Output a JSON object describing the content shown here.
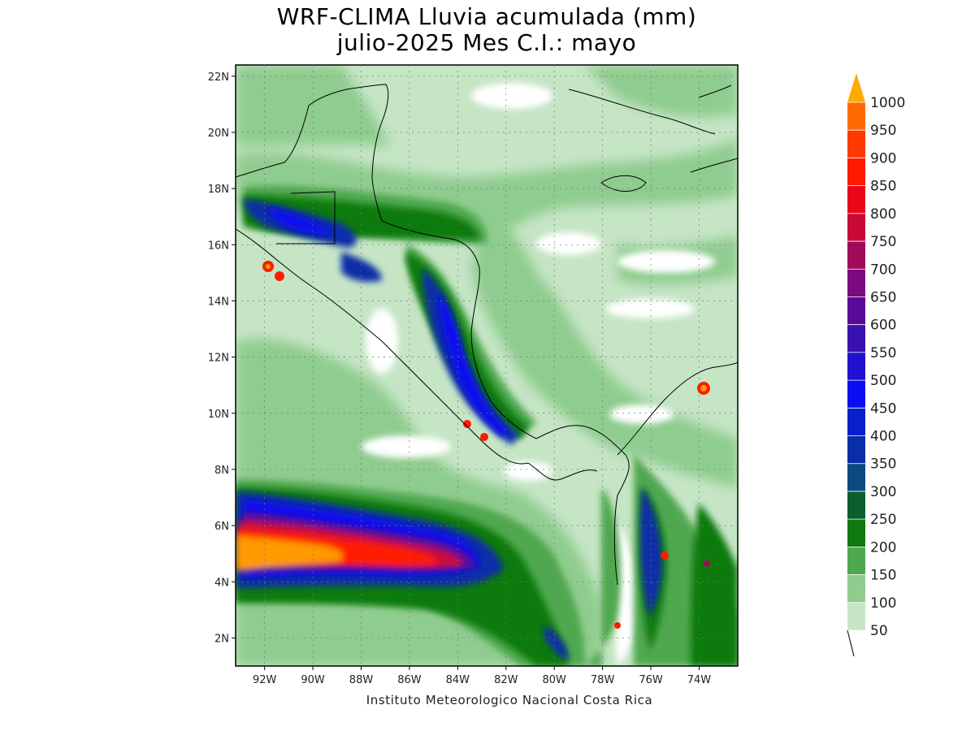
{
  "title": {
    "line1": "WRF-CLIMA Lluvia acumulada (mm)",
    "line2": "julio-2025 Mes C.I.: mayo"
  },
  "credit": "Instituto Meteorologico Nacional Costa Rica",
  "map": {
    "lon_range": [
      -93.2,
      -72.4
    ],
    "lat_range": [
      1.0,
      22.4
    ],
    "lat_ticks": [
      {
        "value": 22,
        "label": "22N"
      },
      {
        "value": 20,
        "label": "20N"
      },
      {
        "value": 18,
        "label": "18N"
      },
      {
        "value": 16,
        "label": "16N"
      },
      {
        "value": 14,
        "label": "14N"
      },
      {
        "value": 12,
        "label": "12N"
      },
      {
        "value": 10,
        "label": "10N"
      },
      {
        "value": 8,
        "label": "8N"
      },
      {
        "value": 6,
        "label": "6N"
      },
      {
        "value": 4,
        "label": "4N"
      },
      {
        "value": 2,
        "label": "2N"
      }
    ],
    "lon_ticks": [
      {
        "value": -92,
        "label": "92W"
      },
      {
        "value": -90,
        "label": "90W"
      },
      {
        "value": -88,
        "label": "88W"
      },
      {
        "value": -86,
        "label": "86W"
      },
      {
        "value": -84,
        "label": "84W"
      },
      {
        "value": -82,
        "label": "82W"
      },
      {
        "value": -80,
        "label": "80W"
      },
      {
        "value": -78,
        "label": "78W"
      },
      {
        "value": -76,
        "label": "76W"
      },
      {
        "value": -74,
        "label": "74W"
      }
    ],
    "grid": true,
    "field": "rainfall-contour-field"
  },
  "colorbar": {
    "levels": [
      {
        "label": "50",
        "color": "#c5e5c5"
      },
      {
        "label": "100",
        "color": "#8fcc8f"
      },
      {
        "label": "150",
        "color": "#4fa84f"
      },
      {
        "label": "200",
        "color": "#0f7a0f"
      },
      {
        "label": "250",
        "color": "#0b5e2e"
      },
      {
        "label": "300",
        "color": "#0a4a80"
      },
      {
        "label": "350",
        "color": "#0a2ea8"
      },
      {
        "label": "400",
        "color": "#0a1fcc"
      },
      {
        "label": "450",
        "color": "#0a0ff0"
      },
      {
        "label": "500",
        "color": "#2010d0"
      },
      {
        "label": "550",
        "color": "#3a10b0"
      },
      {
        "label": "600",
        "color": "#5a0a98"
      },
      {
        "label": "650",
        "color": "#7a0a80"
      },
      {
        "label": "700",
        "color": "#a00a5a"
      },
      {
        "label": "750",
        "color": "#c80a38"
      },
      {
        "label": "800",
        "color": "#e8081a"
      },
      {
        "label": "850",
        "color": "#ff1a00"
      },
      {
        "label": "900",
        "color": "#ff3a00"
      },
      {
        "label": "950",
        "color": "#ff6a00"
      },
      {
        "label": "1000",
        "color": "#ff9a00"
      }
    ],
    "over_color": "#ffaa00"
  }
}
